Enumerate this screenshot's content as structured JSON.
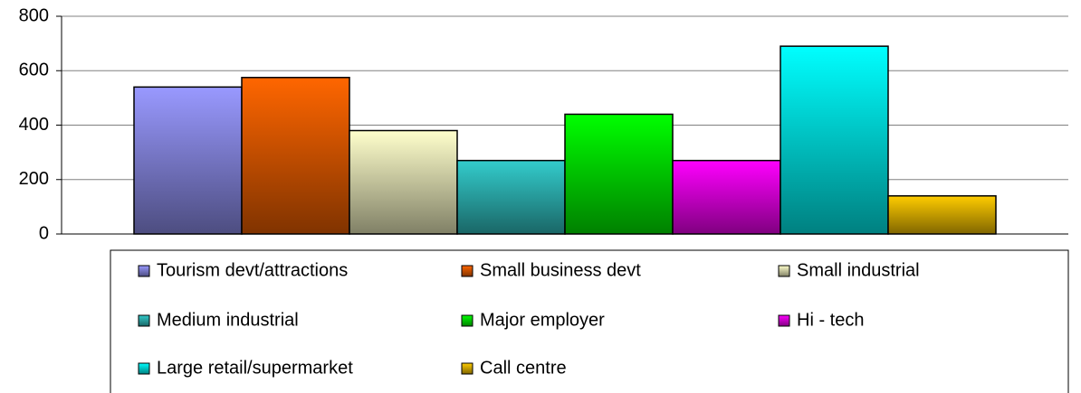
{
  "chart_data": {
    "type": "bar",
    "categories": [
      null
    ],
    "series": [
      {
        "name": "Tourism devt/attractions",
        "color": "#9999ff",
        "values": [
          540
        ]
      },
      {
        "name": "Small business devt",
        "color": "#ff6600",
        "values": [
          575
        ]
      },
      {
        "name": "Small industrial",
        "color": "#ffffcc",
        "values": [
          380
        ]
      },
      {
        "name": "Medium industrial",
        "color": "#33cccc",
        "values": [
          270
        ]
      },
      {
        "name": "Major employer",
        "color": "#00ff00",
        "values": [
          440
        ]
      },
      {
        "name": "Hi - tech",
        "color": "#ff00ff",
        "values": [
          270
        ]
      },
      {
        "name": "Large retail/supermarket",
        "color": "#00ffff",
        "values": [
          690
        ]
      },
      {
        "name": "Call centre",
        "color": "#ffcc00",
        "values": [
          140
        ]
      }
    ],
    "ylim": [
      0,
      800
    ],
    "yticks": [
      0,
      200,
      400,
      600,
      800
    ],
    "grid": true,
    "legend": "bottom"
  }
}
